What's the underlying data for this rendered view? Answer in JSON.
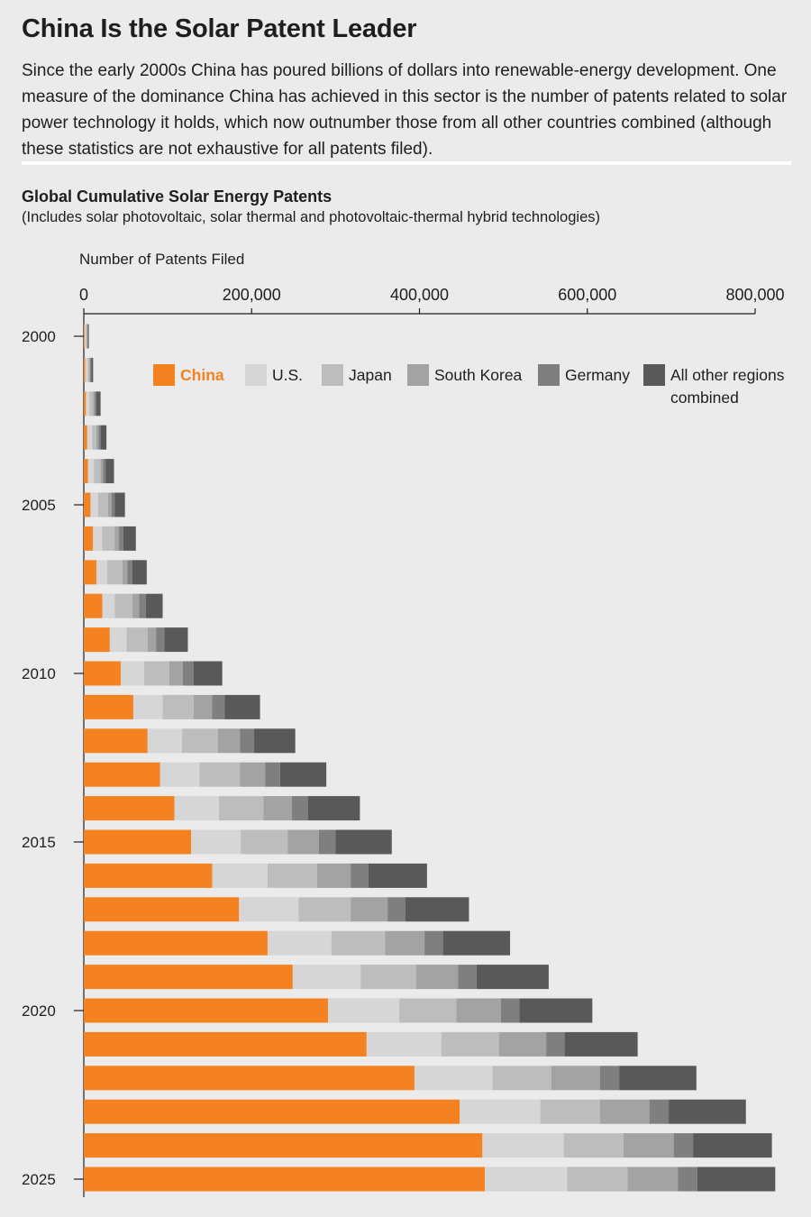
{
  "title": "China Is the Solar Patent Leader",
  "intro": "Since the early 2000s China has poured billions of dollars into renewable-energy development. One measure of the dominance China has achieved in this sector is the number of patents related to solar power technology it holds, which now outnumber those from all other countries combined (although these statistics are not exhaustive for all patents filed).",
  "chart_data": {
    "type": "bar",
    "orientation": "horizontal",
    "stacked": true,
    "title": "Global Cumulative Solar Energy Patents",
    "subtitle": "(Includes solar photovoltaic, solar thermal and photovoltaic-thermal hybrid technologies)",
    "xlabel": "Number of Patents Filed",
    "xlim": [
      0,
      800000
    ],
    "xticks": [
      0,
      200000,
      400000,
      600000,
      800000
    ],
    "xtick_labels": [
      "0",
      "200,000",
      "400,000",
      "600,000",
      "800,000"
    ],
    "categories": [
      2000,
      2001,
      2002,
      2003,
      2004,
      2005,
      2006,
      2007,
      2008,
      2009,
      2010,
      2011,
      2012,
      2013,
      2014,
      2015,
      2016,
      2017,
      2018,
      2019,
      2020,
      2021,
      2022,
      2023,
      2024,
      2025
    ],
    "ytick_labels": [
      "2000",
      "2005",
      "2010",
      "2015",
      "2020",
      "2025"
    ],
    "legend_position": "top-right",
    "series": [
      {
        "name": "China",
        "color": "#f58220",
        "values": [
          1000,
          1600,
          2500,
          4000,
          5000,
          8000,
          11000,
          15000,
          22000,
          31000,
          44000,
          59000,
          76000,
          91000,
          108000,
          128000,
          153000,
          185000,
          219000,
          249000,
          291000,
          337000,
          394000,
          448000,
          475000,
          478000
        ]
      },
      {
        "name": "U.S.",
        "color": "#d6d6d6",
        "values": [
          1500,
          3000,
          4500,
          6000,
          7000,
          9000,
          11000,
          13000,
          15000,
          20000,
          28000,
          35000,
          41000,
          47000,
          53000,
          59000,
          66000,
          71000,
          76000,
          81000,
          85000,
          89000,
          93000,
          96000,
          97000,
          98000
        ]
      },
      {
        "name": "Japan",
        "color": "#bdbdbd",
        "values": [
          1000,
          2000,
          4000,
          5000,
          8000,
          12000,
          15000,
          18000,
          21000,
          25000,
          30000,
          37000,
          43000,
          48000,
          53000,
          56000,
          59000,
          62000,
          64000,
          66000,
          68000,
          69000,
          70000,
          71000,
          71000,
          72000
        ]
      },
      {
        "name": "South Korea",
        "color": "#a3a3a3",
        "values": [
          500,
          1000,
          2000,
          2500,
          3000,
          4000,
          5000,
          6000,
          8000,
          10000,
          16000,
          22000,
          26000,
          30000,
          34000,
          37000,
          40000,
          44000,
          47000,
          50000,
          53000,
          56000,
          58000,
          59000,
          60000,
          60000
        ]
      },
      {
        "name": "Germany",
        "color": "#7f7f7f",
        "values": [
          1000,
          1500,
          2000,
          2500,
          3000,
          4000,
          5000,
          6000,
          8000,
          10000,
          13000,
          15000,
          17000,
          18000,
          19000,
          20000,
          21000,
          21000,
          22000,
          22000,
          22000,
          22000,
          23000,
          23000,
          23000,
          23000
        ]
      },
      {
        "name": "All other regions combined",
        "color": "#595959",
        "values": [
          1000,
          2000,
          5000,
          7000,
          10000,
          12000,
          15000,
          17000,
          20000,
          28000,
          34000,
          42000,
          49000,
          55000,
          62000,
          67000,
          70000,
          76000,
          80000,
          86000,
          87000,
          87000,
          92000,
          92000,
          94000,
          93000
        ]
      }
    ]
  }
}
